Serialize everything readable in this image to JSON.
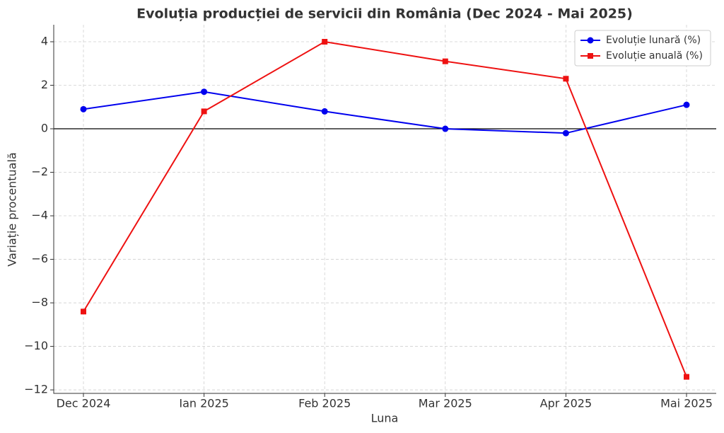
{
  "chart_data": {
    "type": "line",
    "title": "Evoluția producției de servicii din România (Dec 2024 - Mai 2025)",
    "x_label": "Luna",
    "y_label": "Variație procentuală",
    "categories": [
      "Dec 2024",
      "Ian 2025",
      "Feb 2025",
      "Mar 2025",
      "Apr 2025",
      "Mai 2025"
    ],
    "series": [
      {
        "name": "Evoluție lunară (%)",
        "color": "#0000ee",
        "marker": "circle",
        "values": [
          0.9,
          1.7,
          0.8,
          0.0,
          -0.2,
          1.1
        ]
      },
      {
        "name": "Evoluție anuală (%)",
        "color": "#ee1111",
        "marker": "square",
        "values": [
          -8.4,
          0.8,
          4.0,
          3.1,
          2.3,
          -11.4
        ]
      }
    ],
    "ylim": [
      -12.16,
      4.78
    ],
    "yticks": [
      {
        "value": -12,
        "label": "−12"
      },
      {
        "value": -10,
        "label": "−10"
      },
      {
        "value": -8,
        "label": "−8"
      },
      {
        "value": -6,
        "label": "−6"
      },
      {
        "value": -4,
        "label": "−4"
      },
      {
        "value": -2,
        "label": "−2"
      },
      0,
      2,
      4
    ],
    "grid": true,
    "legend": "upper right"
  }
}
